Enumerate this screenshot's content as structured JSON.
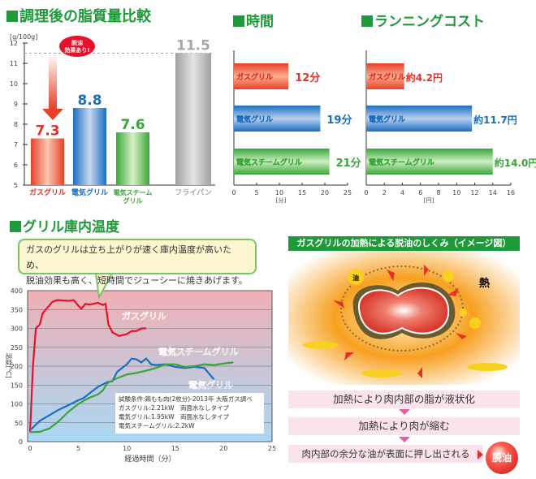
{
  "headings": {
    "fat": "調理後の脂質量比較",
    "time": "時間",
    "cost": "ランニングコスト",
    "temp": "グリル庫内温度"
  },
  "colors": {
    "gas": "#e8302a",
    "electric": "#1a6fc0",
    "steam": "#3aa63a",
    "frypan": "#a8a8a8",
    "heading": "#1f9a3a"
  },
  "chart_data": [
    {
      "type": "bar",
      "title": "調理後の脂質量比較",
      "ylabel": "[g/100g]",
      "ylim": [
        5,
        12
      ],
      "yticks": [
        5,
        6,
        7,
        8,
        9,
        10,
        11,
        12
      ],
      "categories": [
        "ガスグリル",
        "電気グリル",
        "電気スチームグリル",
        "フライパン"
      ],
      "values": [
        7.3,
        8.8,
        7.6,
        11.5
      ],
      "value_labels": [
        "7.3",
        "8.8",
        "7.6",
        "11.5"
      ],
      "annotation": "脱油効果あり!",
      "reference_line": 11.5
    },
    {
      "type": "bar",
      "orientation": "horizontal",
      "title": "時間",
      "xlabel": "[分]",
      "xlim": [
        0,
        25
      ],
      "xticks": [
        0,
        5,
        10,
        15,
        20,
        25
      ],
      "categories": [
        "ガスグリル",
        "電気グリル",
        "電気スチームグリル"
      ],
      "values": [
        12,
        19,
        21
      ],
      "value_labels": [
        "12分",
        "19分",
        "21分"
      ]
    },
    {
      "type": "bar",
      "orientation": "horizontal",
      "title": "ランニングコスト",
      "xlabel": "[円]",
      "xlim": [
        0,
        16
      ],
      "xticks": [
        0,
        2,
        4,
        6,
        8,
        10,
        12,
        14,
        16
      ],
      "categories": [
        "ガスグリル",
        "電気グリル",
        "電気スチームグリル"
      ],
      "values": [
        4.2,
        11.7,
        14.0
      ],
      "value_labels": [
        "約4.2円",
        "約11.7円",
        "約14.0円"
      ]
    },
    {
      "type": "line",
      "title": "グリル庫内温度",
      "xlabel": "経過時間（分）",
      "ylabel": "温度[℃]",
      "xlim": [
        0,
        25
      ],
      "ylim": [
        0,
        400
      ],
      "xticks": [
        0,
        5,
        10,
        15,
        20,
        25
      ],
      "yticks": [
        0,
        50,
        100,
        150,
        200,
        250,
        300,
        350,
        400
      ],
      "grid": true,
      "series": [
        {
          "name": "ガスグリル",
          "x": [
            0,
            0.3,
            0.6,
            1,
            1.3,
            1.8,
            2.3,
            2.8,
            4,
            4.5,
            5,
            5.3,
            5.7,
            6.2,
            7,
            7.5,
            7.8,
            8.1,
            8.5,
            9.2,
            10,
            10.5,
            11,
            11.5,
            12
          ],
          "y": [
            25,
            200,
            300,
            310,
            340,
            355,
            370,
            375,
            373,
            375,
            360,
            352,
            365,
            363,
            368,
            362,
            365,
            310,
            290,
            280,
            285,
            293,
            293,
            300,
            300
          ]
        },
        {
          "name": "電気グリル",
          "x": [
            0,
            1,
            2,
            3,
            4,
            5,
            5.5,
            6,
            7,
            8,
            8.5,
            9,
            10,
            10.5,
            11,
            11.5,
            12,
            12.5,
            13,
            14,
            15,
            16,
            17,
            18,
            19
          ],
          "y": [
            30,
            55,
            70,
            85,
            97,
            110,
            115,
            125,
            145,
            158,
            160,
            185,
            205,
            220,
            218,
            210,
            220,
            205,
            203,
            205,
            198,
            195,
            198,
            195,
            165
          ]
        },
        {
          "name": "電気スチームグリル",
          "x": [
            0,
            1,
            2,
            3,
            4,
            5,
            6,
            7,
            7.5,
            8,
            8.5,
            9,
            10,
            11,
            12,
            13,
            14,
            15,
            16,
            17,
            18,
            19,
            20,
            21
          ],
          "y": [
            25,
            26,
            35,
            55,
            80,
            100,
            115,
            125,
            135,
            155,
            162,
            168,
            178,
            182,
            188,
            195,
            205,
            205,
            198,
            200,
            205,
            203,
            207,
            210
          ]
        }
      ],
      "callout": [
        "ガスのグリルは立ち上がりが速く庫内温度が高いため、",
        "脱油効果も高く、短時間でジューシーに焼きあげます。"
      ],
      "notes": [
        "試験条件:鶏もも肉(2枚分)-2013年 大阪ガス調べ",
        "ガスグリル:2.21kW　両面水なしタイプ",
        "電気グリル:1.95kW　両面水なしタイプ",
        "電気スチームグリル:2.2kW"
      ]
    }
  ],
  "diagram": {
    "title": "ガスグリルの加熱による脱油のしくみ（イメージ図）",
    "oil_label": "油",
    "heat_label": "熱",
    "steps": [
      "加熱により肉内部の脂が液状化",
      "加熱により肉が縮む",
      "肉内部の余分な油が表面に押し出される"
    ],
    "result": "脱油"
  }
}
